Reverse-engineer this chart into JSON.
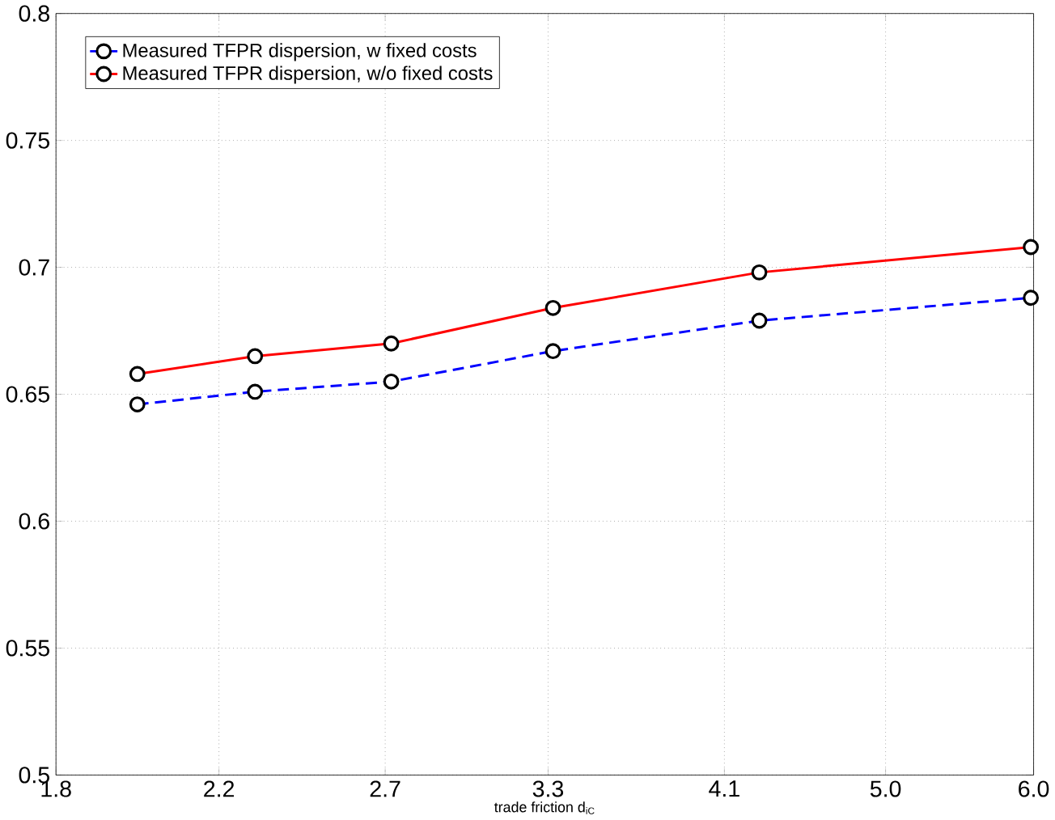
{
  "chart_data": {
    "type": "line",
    "xlabel": "trade friction d$_{iC}$",
    "log": "x",
    "xlim": [
      1.8,
      6.0
    ],
    "xticks": [
      {
        "value": 1.8,
        "label": "1.8"
      },
      {
        "value": 2.2,
        "label": "2.2"
      },
      {
        "value": 2.7,
        "label": "2.7"
      },
      {
        "value": 3.3,
        "label": "3.3"
      },
      {
        "value": 4.1,
        "label": "4.1"
      },
      {
        "value": 5.0,
        "label": "5.0"
      },
      {
        "value": 6.0,
        "label": "6.0"
      }
    ],
    "ylim": [
      0.5,
      0.8
    ],
    "yticks": [
      0.5,
      0.55,
      0.6,
      0.65,
      0.7,
      0.75,
      0.8
    ],
    "x": [
      1.99,
      2.3,
      2.72,
      3.32,
      4.28,
      5.98
    ],
    "series": [
      {
        "name": "Measured TFPR dispersion, w fixed costs",
        "color": "#0000ff",
        "line_style": "dashed",
        "values": [
          0.646,
          0.651,
          0.655,
          0.667,
          0.679,
          0.688
        ]
      },
      {
        "name": "Measured TFPR dispersion, w/o fixed costs",
        "color": "#ff0000",
        "line_style": "solid",
        "values": [
          0.658,
          0.665,
          0.67,
          0.684,
          0.698,
          0.708
        ]
      }
    ],
    "grid": true,
    "legend": "top left",
    "marker": "circle"
  }
}
